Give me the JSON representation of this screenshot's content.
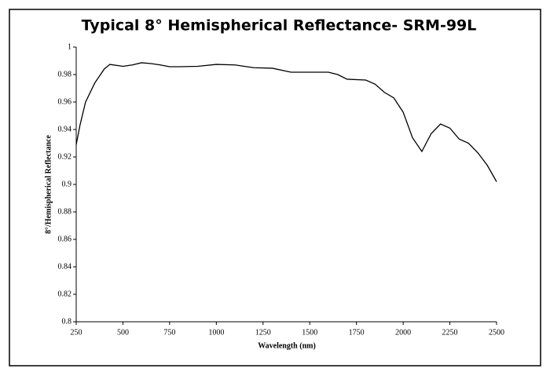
{
  "chart_data": {
    "type": "line",
    "title": "Typical 8° Hemispherical Reflectance- SRM-99L",
    "x_label": "Wavelength (nm)",
    "y_label": "8°/Hemispherical Reflectance",
    "x": [
      250,
      270,
      300,
      350,
      400,
      430,
      500,
      550,
      600,
      650,
      700,
      750,
      800,
      900,
      1000,
      1100,
      1200,
      1300,
      1400,
      1500,
      1600,
      1650,
      1700,
      1800,
      1850,
      1900,
      1950,
      2000,
      2050,
      2100,
      2150,
      2200,
      2250,
      2300,
      2350,
      2400,
      2450,
      2500
    ],
    "series": [
      {
        "color": "#000000",
        "values": [
          0.929,
          0.943,
          0.96,
          0.974,
          0.984,
          0.9874,
          0.986,
          0.987,
          0.9886,
          0.988,
          0.987,
          0.9857,
          0.9857,
          0.986,
          0.9874,
          0.987,
          0.985,
          0.9846,
          0.9817,
          0.9817,
          0.9817,
          0.98,
          0.9766,
          0.976,
          0.973,
          0.967,
          0.963,
          0.9526,
          0.934,
          0.924,
          0.937,
          0.944,
          0.941,
          0.933,
          0.93,
          0.923,
          0.914,
          0.902
        ]
      }
    ],
    "xlim": [
      250,
      2500
    ],
    "xticks": [
      250,
      500,
      750,
      1000,
      1250,
      1500,
      1750,
      2000,
      2250,
      2500
    ],
    "ylim": [
      0.8,
      1
    ],
    "yticks": [
      0.8,
      0.82,
      0.84,
      0.86,
      0.88,
      0.9,
      0.92,
      0.94,
      0.96,
      0.98,
      1
    ],
    "grid": false
  }
}
